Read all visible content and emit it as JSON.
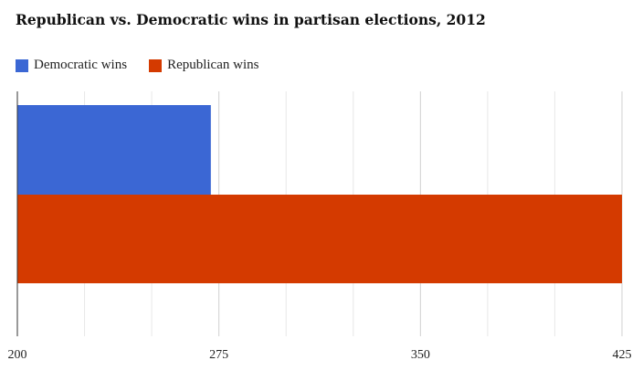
{
  "chart_data": {
    "type": "bar",
    "orientation": "horizontal",
    "title": "Republican vs. Democratic wins in partisan elections, 2012",
    "xlabel": "",
    "ylabel": "",
    "xlim": [
      200,
      425
    ],
    "xticks": [
      "200",
      "275",
      "350",
      "425"
    ],
    "grid": true,
    "legend_position": "top-left",
    "series": [
      {
        "name": "Democratic wins",
        "value": 272,
        "color": "#3b67d4"
      },
      {
        "name": "Republican wins",
        "value": 425,
        "color": "#d43a00"
      }
    ]
  }
}
